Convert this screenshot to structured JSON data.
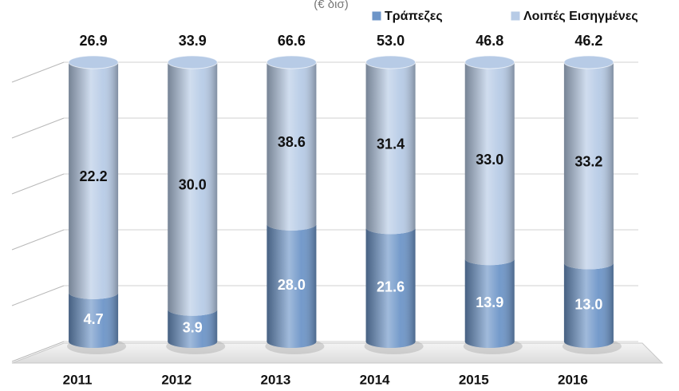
{
  "chart_data": {
    "type": "bar",
    "stacked": true,
    "normalized": true,
    "subtitle": "(€ δισ)",
    "categories": [
      "2011",
      "2012",
      "2013",
      "2014",
      "2015",
      "2016"
    ],
    "series": [
      {
        "name": "Τράπεζες",
        "color": "#6d95c8",
        "label_color": "#ffffff",
        "values": [
          4.7,
          3.9,
          28.0,
          21.6,
          13.9,
          13.0
        ],
        "value_labels": [
          "4.7",
          "3.9",
          "28.0",
          "21.6",
          "13.9",
          "13.0"
        ]
      },
      {
        "name": "Λοιπές Εισηγμένες",
        "color": "#b7cbe6",
        "label_color": "#111111",
        "values": [
          22.2,
          30.0,
          38.6,
          31.4,
          33.0,
          33.2
        ],
        "value_labels": [
          "22.2",
          "30.0",
          "38.6",
          "31.4",
          "33.0",
          "33.2"
        ]
      }
    ],
    "totals": [
      26.9,
      33.9,
      66.6,
      53.0,
      46.8,
      46.2
    ],
    "total_labels": [
      "26.9",
      "33.9",
      "66.6",
      "53.0",
      "46.8",
      "46.2"
    ],
    "ylim": [
      0,
      100
    ],
    "yticks": [
      0,
      20,
      40,
      60,
      80,
      100
    ],
    "grid": true,
    "legend": "top-right"
  }
}
